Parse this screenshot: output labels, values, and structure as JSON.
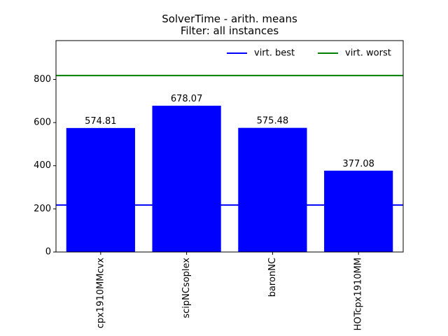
{
  "chart_data": {
    "type": "bar",
    "title": "SolverTime - arith. means",
    "subtitle": "Filter: all instances",
    "categories": [
      "cpx1910MMcvx",
      "scipNCsoplex",
      "baronNC",
      "HOTcpx1910MM"
    ],
    "values": [
      574.81,
      678.07,
      575.48,
      377.08
    ],
    "value_labels": [
      "574.81",
      "678.07",
      "575.48",
      "377.08"
    ],
    "bar_color": "#0000ff",
    "ylim": [
      0,
      980
    ],
    "yticks": [
      0,
      200,
      400,
      600,
      800
    ],
    "xlabel": "",
    "ylabel": "",
    "grid": false,
    "reference_lines": [
      {
        "name": "virt. best",
        "value": 218,
        "color": "#0000ff"
      },
      {
        "name": "virt. worst",
        "value": 818,
        "color": "#008000"
      }
    ],
    "legend_position": "top-right"
  }
}
